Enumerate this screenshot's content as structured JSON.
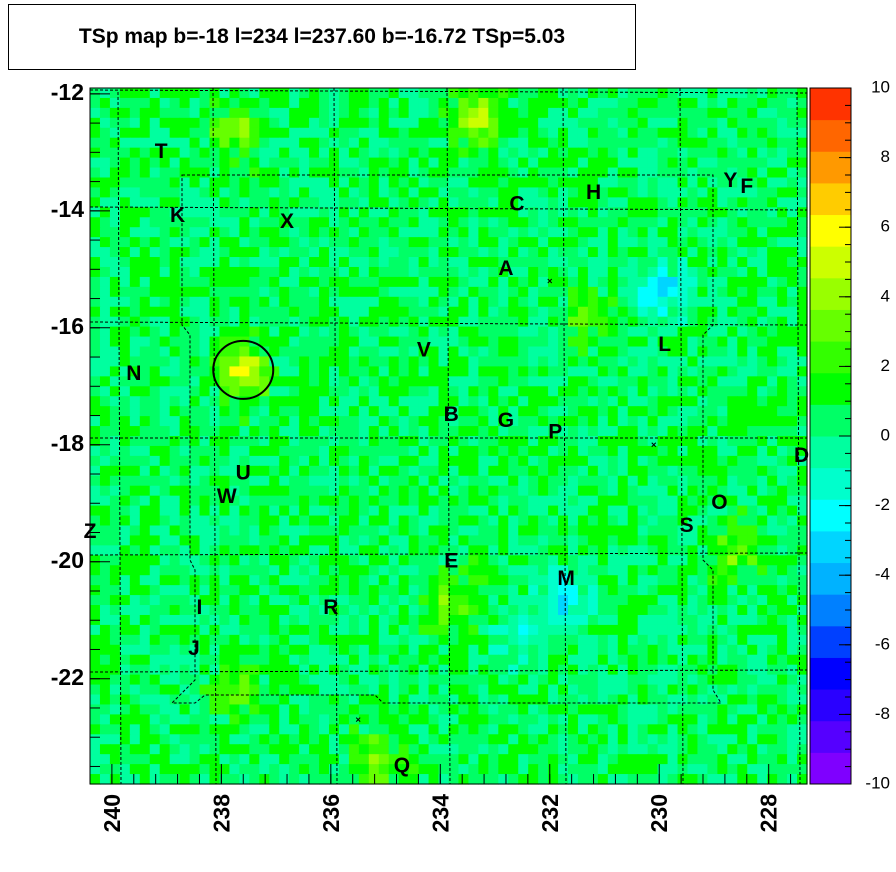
{
  "title": "TSp map b=-18 l=234 l=237.60 b=-16.72 TSp=5.03",
  "chart_data": {
    "type": "heatmap",
    "title": "TSp map b=-18 l=234 l=237.60 b=-16.72 TSp=5.03",
    "x_axis": {
      "reversed": true,
      "xlim": [
        240.4,
        227.3
      ],
      "ticks": [
        240,
        238,
        236,
        234,
        232,
        230,
        228
      ]
    },
    "y_axis": {
      "ylim": [
        -23.8,
        -11.9
      ],
      "ticks": [
        -12,
        -14,
        -16,
        -18,
        -20,
        -22
      ]
    },
    "colorbar": {
      "zlim": [
        -10,
        10
      ],
      "ticks": [
        10,
        8,
        6,
        4,
        2,
        0,
        -2,
        -4,
        -6,
        -8,
        -10
      ],
      "colors": [
        "#7f00ff",
        "#5500ff",
        "#2a00ff",
        "#0000ff",
        "#0040ff",
        "#0080ff",
        "#00b2ff",
        "#00d5ff",
        "#00ffff",
        "#00ffcc",
        "#00ff9f",
        "#00ff66",
        "#00ff00",
        "#33ff00",
        "#66ff00",
        "#99ff00",
        "#ccff00",
        "#ffff00",
        "#ffcc00",
        "#ff9900",
        "#ff6600",
        "#ff3300"
      ]
    },
    "field_value_typical": 0.5,
    "hotspots": [
      {
        "l": 237.6,
        "b": -16.72,
        "value": 5.03
      },
      {
        "l": 233.3,
        "b": -12.4,
        "value": 4.5
      },
      {
        "l": 237.7,
        "b": -12.6,
        "value": 3.5
      },
      {
        "l": 233.8,
        "b": -20.7,
        "value": 3.5
      },
      {
        "l": 235.2,
        "b": -23.4,
        "value": 3.5
      },
      {
        "l": 228.6,
        "b": -19.8,
        "value": 3.0
      },
      {
        "l": 237.8,
        "b": -22.2,
        "value": 3.0
      },
      {
        "l": 231.3,
        "b": -15.8,
        "value": 3.0
      }
    ],
    "coldspots": [
      {
        "l": 230.0,
        "b": -15.4,
        "value": -3.0
      },
      {
        "l": 231.7,
        "b": -20.6,
        "value": -2.5
      },
      {
        "l": 232.5,
        "b": -21.2,
        "value": -2.0
      }
    ],
    "source_circle": {
      "l": 237.6,
      "b": -16.72
    },
    "cross_marks": [
      {
        "l": 232.0,
        "b": -15.2
      },
      {
        "l": 230.1,
        "b": -18.0
      },
      {
        "l": 235.5,
        "b": -22.7
      }
    ],
    "labels": [
      {
        "text": "T",
        "l": 239.1,
        "b": -13.0
      },
      {
        "text": "K",
        "l": 238.8,
        "b": -14.1
      },
      {
        "text": "X",
        "l": 236.8,
        "b": -14.2
      },
      {
        "text": "C",
        "l": 232.6,
        "b": -13.9
      },
      {
        "text": "H",
        "l": 231.2,
        "b": -13.7
      },
      {
        "text": "Y",
        "l": 228.7,
        "b": -13.5
      },
      {
        "text": "F",
        "l": 228.4,
        "b": -13.6
      },
      {
        "text": "A",
        "l": 232.8,
        "b": -15.0
      },
      {
        "text": "N",
        "l": 239.6,
        "b": -16.8
      },
      {
        "text": "V",
        "l": 234.3,
        "b": -16.4
      },
      {
        "text": "L",
        "l": 229.9,
        "b": -16.3
      },
      {
        "text": "B",
        "l": 233.8,
        "b": -17.5
      },
      {
        "text": "G",
        "l": 232.8,
        "b": -17.6
      },
      {
        "text": "P",
        "l": 231.9,
        "b": -17.8
      },
      {
        "text": "D",
        "l": 227.4,
        "b": -18.2
      },
      {
        "text": "U",
        "l": 237.6,
        "b": -18.5
      },
      {
        "text": "W",
        "l": 237.9,
        "b": -18.9
      },
      {
        "text": "O",
        "l": 228.9,
        "b": -19.0
      },
      {
        "text": "S",
        "l": 229.5,
        "b": -19.4
      },
      {
        "text": "Z",
        "l": 240.4,
        "b": -19.5
      },
      {
        "text": "E",
        "l": 233.8,
        "b": -20.0
      },
      {
        "text": "M",
        "l": 231.7,
        "b": -20.3
      },
      {
        "text": "I",
        "l": 238.4,
        "b": -20.8
      },
      {
        "text": "R",
        "l": 236.0,
        "b": -20.8
      },
      {
        "text": "J",
        "l": 238.5,
        "b": -21.5
      },
      {
        "text": "Q",
        "l": 234.7,
        "b": -23.5
      }
    ],
    "grid": false
  }
}
